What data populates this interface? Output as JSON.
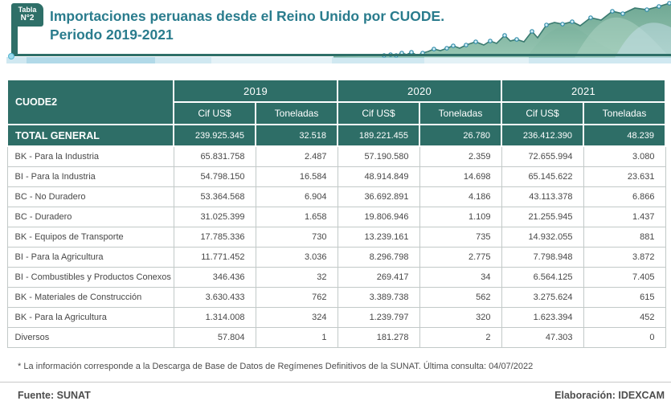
{
  "header": {
    "badge_line1": "Tabla",
    "badge_line2": "N°2",
    "title_line1": "Importaciones peruanas desde el Reino Unido por CUODE.",
    "title_line2": "Periodo 2019-2021"
  },
  "chart_data": {
    "type": "table",
    "title": "Importaciones peruanas desde el Reino Unido por CUODE. Periodo 2019-2021",
    "column_group_header": "CUODE2",
    "year_groups": [
      "2019",
      "2020",
      "2021"
    ],
    "sub_headers": [
      "Cif US$",
      "Toneladas"
    ],
    "columns": [
      "CUODE2",
      "2019 Cif US$",
      "2019 Toneladas",
      "2020 Cif US$",
      "2020 Toneladas",
      "2021 Cif US$",
      "2021 Toneladas"
    ],
    "total_row": {
      "label": "TOTAL GENERAL",
      "values": [
        "239.925.345",
        "32.518",
        "189.221.455",
        "26.780",
        "236.412.390",
        "48.239"
      ]
    },
    "rows": [
      {
        "label": "BK - Para la Industria",
        "values": [
          "65.831.758",
          "2.487",
          "57.190.580",
          "2.359",
          "72.655.994",
          "3.080"
        ]
      },
      {
        "label": "BI - Para la Industria",
        "values": [
          "54.798.150",
          "16.584",
          "48.914.849",
          "14.698",
          "65.145.622",
          "23.631"
        ]
      },
      {
        "label": "BC - No Duradero",
        "values": [
          "53.364.568",
          "6.904",
          "36.692.891",
          "4.186",
          "43.113.378",
          "6.866"
        ]
      },
      {
        "label": "BC - Duradero",
        "values": [
          "31.025.399",
          "1.658",
          "19.806.946",
          "1.109",
          "21.255.945",
          "1.437"
        ]
      },
      {
        "label": "BK - Equipos de Transporte",
        "values": [
          "17.785.336",
          "730",
          "13.239.161",
          "735",
          "14.932.055",
          "881"
        ]
      },
      {
        "label": "BI - Para la Agricultura",
        "values": [
          "11.771.452",
          "3.036",
          "8.296.798",
          "2.775",
          "7.798.948",
          "3.872"
        ]
      },
      {
        "label": "BI - Combustibles y Productos Conexos",
        "values": [
          "346.436",
          "32",
          "269.417",
          "34",
          "6.564.125",
          "7.405"
        ]
      },
      {
        "label": "BK - Materiales de Construcción",
        "values": [
          "3.630.433",
          "762",
          "3.389.738",
          "562",
          "3.275.624",
          "615"
        ]
      },
      {
        "label": "BK - Para la Agricultura",
        "values": [
          "1.314.008",
          "324",
          "1.239.797",
          "320",
          "1.623.394",
          "452"
        ]
      },
      {
        "label": "Diversos",
        "values": [
          "57.804",
          "1",
          "181.278",
          "2",
          "47.303",
          "0"
        ]
      }
    ]
  },
  "footer": {
    "note": "* La información corresponde a la Descarga de Base de Datos de Regímenes Definitivos de la SUNAT. Última consulta: 04/07/2022",
    "source": "Fuente: SUNAT",
    "elaboration": "Elaboración: IDEXCAM"
  },
  "colors": {
    "accent_teal": "#2e6e67",
    "title_teal": "#2a7c8d",
    "light_blue_strip": "#97cde0",
    "marker_stroke": "#2d8aa8",
    "area_green": "#6aa991"
  }
}
